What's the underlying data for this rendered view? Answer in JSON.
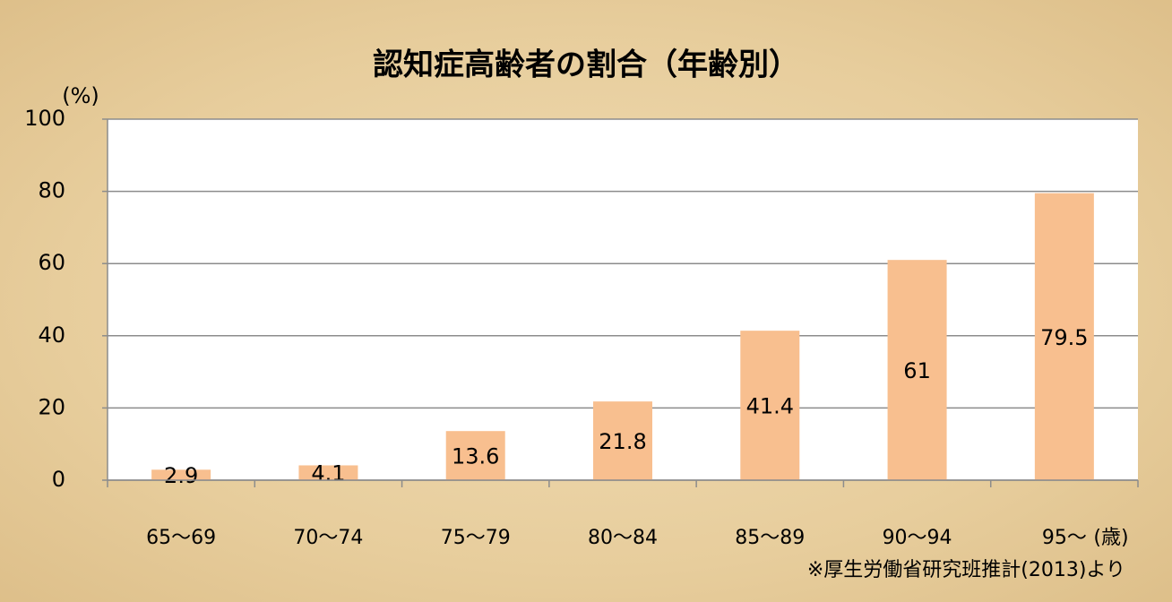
{
  "chart_data": {
    "type": "bar",
    "title": "認知症高齢者の割合（年齢別）",
    "ylabel": "(%)",
    "xlabel": "(歳)",
    "note": "※厚生労働省研究班推計(2013)より",
    "categories": [
      "65～69",
      "70～74",
      "75～79",
      "80～84",
      "85～89",
      "90～94",
      "95～"
    ],
    "values": [
      2.9,
      4.1,
      13.6,
      21.8,
      41.4,
      61,
      79.5
    ],
    "color": "#f8bf8f",
    "ylim": [
      0,
      100
    ],
    "yticks": [
      0,
      20,
      40,
      60,
      80,
      100
    ],
    "grid": true
  }
}
